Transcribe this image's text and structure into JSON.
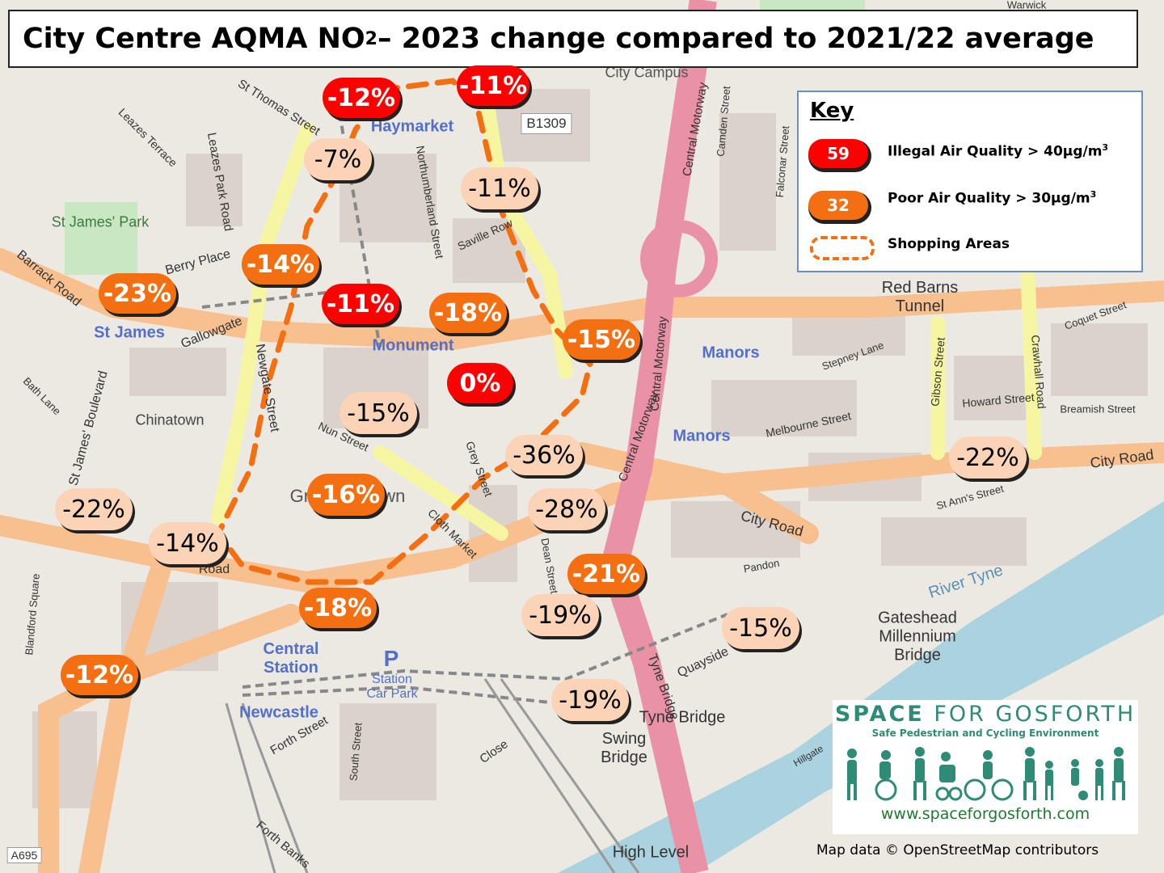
{
  "title": {
    "prefix": "City Centre AQMA NO",
    "sub": "2",
    "suffix": " – 2023 change compared to 2021/22 average"
  },
  "key": {
    "heading": "Key",
    "illegal": {
      "value": "59",
      "label": "Illegal Air Quality > 40µg/m",
      "sup": "3",
      "color": "#ff0000"
    },
    "poor": {
      "value": "32",
      "label": "Poor Air Quality > 30µg/m",
      "sup": "3",
      "color": "#f36f12"
    },
    "shopping": {
      "label": "Shopping Areas"
    }
  },
  "legend_colors": {
    "illegal": "#ff0000",
    "poor": "#f36f12",
    "other": "#fbd3b6",
    "shopping_outline": "#f36f12"
  },
  "readings": [
    {
      "text": "-12%",
      "level": "red"
    },
    {
      "text": "-11%",
      "level": "red"
    },
    {
      "text": "-7%",
      "level": "peach"
    },
    {
      "text": "-11%",
      "level": "peach"
    },
    {
      "text": "-14%",
      "level": "orange"
    },
    {
      "text": "-23%",
      "level": "orange"
    },
    {
      "text": "-11%",
      "level": "red"
    },
    {
      "text": "-18%",
      "level": "orange"
    },
    {
      "text": "-15%",
      "level": "orange"
    },
    {
      "text": "0%",
      "level": "red"
    },
    {
      "text": "-15%",
      "level": "peach"
    },
    {
      "text": "-36%",
      "level": "peach"
    },
    {
      "text": "-22%",
      "level": "peach"
    },
    {
      "text": "-16%",
      "level": "orange"
    },
    {
      "text": "-28%",
      "level": "peach"
    },
    {
      "text": "-22%",
      "level": "peach"
    },
    {
      "text": "-14%",
      "level": "peach"
    },
    {
      "text": "-21%",
      "level": "orange"
    },
    {
      "text": "-18%",
      "level": "orange"
    },
    {
      "text": "-19%",
      "level": "peach"
    },
    {
      "text": "-15%",
      "level": "peach"
    },
    {
      "text": "-12%",
      "level": "orange"
    },
    {
      "text": "-19%",
      "level": "peach"
    }
  ],
  "places": {
    "haymarket": "Haymarket",
    "monument": "Monument",
    "st_james_park": "St James' Park",
    "st_james": "St James",
    "chinatown": "Chinatown",
    "grainger_town": "Grainger Town",
    "central_station": "Central Station",
    "manors_1": "Manors",
    "manors_2": "Manors",
    "newcastle": "Newcastle",
    "station_car_park": "Station Car Park",
    "red_barns_tunnel": "Red Barns Tunnel",
    "gateshead_millennium_bridge": "Gateshead Millennium Bridge",
    "tyne_bridge_label": "Tyne Bridge",
    "swing_bridge": "Swing Bridge",
    "high_level": "High Level",
    "river_tyne": "River Tyne",
    "city_campus": "City Campus",
    "b1309": "B1309",
    "parking": "P"
  },
  "streets": {
    "st_thomas_street": "St Thomas Street",
    "leazes_terrace": "Leazes Terrace",
    "leazes_park_road": "Leazes Park Road",
    "northumberland_street": "Northumberland Street",
    "saville_row": "Saville Row",
    "central_motorway_1": "Central Motorway",
    "central_motorway_2": "Central Motorway",
    "central_motorway_3": "Central Motorway",
    "camden_street": "Camden Street",
    "falconar_street": "Falconar Street",
    "barrack_road": "Barrack Road",
    "gallowgate": "Gallowgate",
    "newgate_street": "Newgate Street",
    "st_james_boulevard": "St James' Boulevard",
    "bath_lane": "Bath Lane",
    "nun_street": "Nun Street",
    "grey_street": "Grey Street",
    "cloth_market": "Cloth Market",
    "dean_street": "Dean Street",
    "city_road_1": "City Road",
    "city_road_2": "City Road",
    "melbourne_street": "Melbourne Street",
    "stepney_lane": "Stepney Lane",
    "gibson_street": "Gibson Street",
    "howard_street": "Howard Street",
    "crawhall_road": "Crawhall Road",
    "breamish_street": "Breamish Street",
    "coquet_street": "Coquet Street",
    "st_anns_street": "St Ann's Street",
    "forth_street": "Forth Street",
    "south_street": "South Street",
    "forth_banks": "Forth Banks",
    "close": "Close",
    "quayside": "Quayside",
    "blandford_square": "Blandford Square",
    "a695": "A695",
    "hillgate": "Hillgate",
    "pandon": "Pandon",
    "tyne_bridge_road": "Tyne Bridge",
    "perry_place": "Berry Place",
    "warwick": "Warwick",
    "westmorland_road": "Road"
  },
  "brand": {
    "name_bold": "SPACE",
    "name_rest": " FOR GOSFORTH",
    "tagline": "Safe Pedestrian and Cycling Environment",
    "url": "www.spaceforgosforth.com",
    "color": "#2e8b75"
  },
  "credit": "Map data © OpenStreetMap contributors"
}
